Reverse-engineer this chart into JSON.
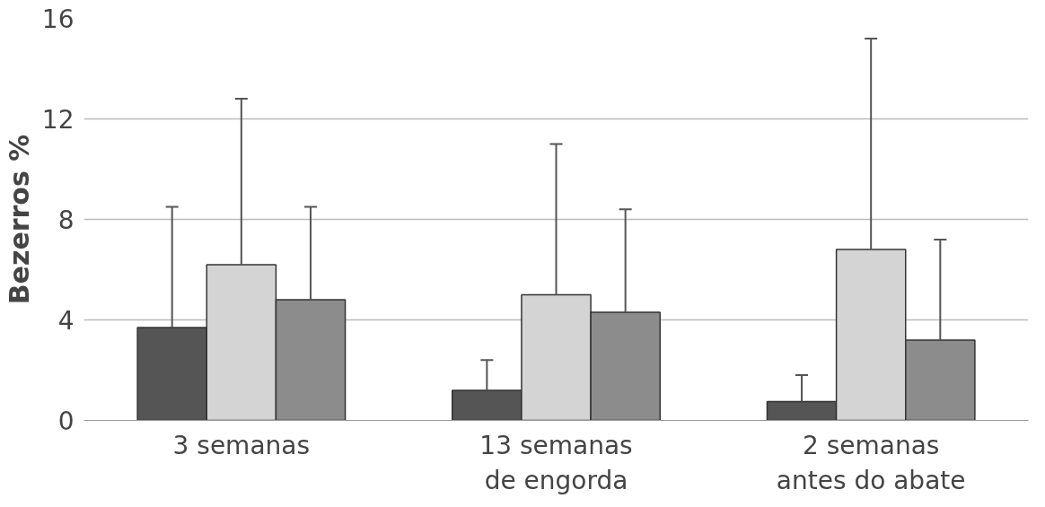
{
  "chart_data": {
    "type": "bar",
    "ylabel": "Bezerros %",
    "categories": [
      "3 semanas",
      "13 semanas\nde engorda",
      "2 semanas\nantes do abate"
    ],
    "series": [
      {
        "color": "#555555",
        "values": [
          3.7,
          1.2,
          0.75
        ],
        "errors": [
          [
            3.7,
            8.5
          ],
          [
            1.2,
            2.4
          ],
          [
            0.75,
            1.8
          ]
        ]
      },
      {
        "color": "#d4d4d4",
        "values": [
          6.2,
          5.0,
          6.8
        ],
        "errors": [
          [
            6.2,
            12.8
          ],
          [
            5.0,
            11.0
          ],
          [
            6.8,
            15.2
          ]
        ]
      },
      {
        "color": "#8c8c8c",
        "values": [
          4.8,
          4.3,
          3.2
        ],
        "errors": [
          [
            4.8,
            8.5
          ],
          [
            4.3,
            8.4
          ],
          [
            3.2,
            7.2
          ]
        ]
      }
    ],
    "ylim": [
      0,
      16
    ],
    "yticks": [
      0,
      4,
      8,
      12,
      16
    ],
    "grid": "y"
  }
}
